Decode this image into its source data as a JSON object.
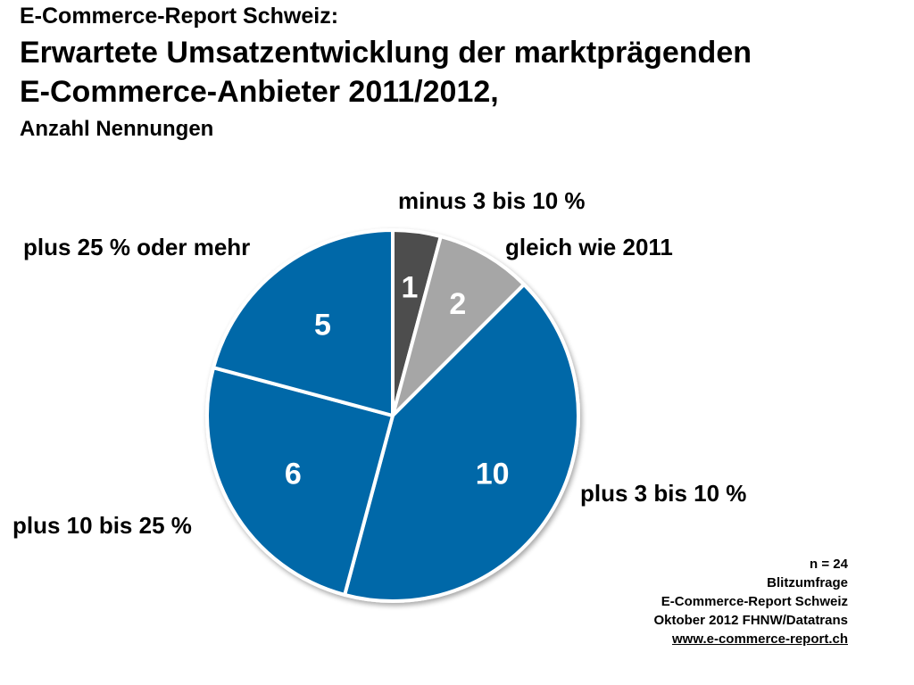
{
  "header": {
    "kicker": "E-Commerce-Report Schweiz:",
    "title_line1": "Erwartete Umsatzentwicklung der marktprägenden",
    "title_line2": "E-Commerce-Anbieter 2011/2012,",
    "subtitle": "Anzahl Nennungen"
  },
  "chart_data": {
    "type": "pie",
    "title": "Erwartete Umsatzentwicklung der marktprägenden E-Commerce-Anbieter 2011/2012,",
    "subtitle": "Anzahl Nennungen",
    "start": "12 o'clock",
    "direction": "clockwise",
    "slices": [
      {
        "label": "minus 3 bis 10 %",
        "value": 1,
        "color": "#4d4d4d"
      },
      {
        "label": "gleich wie 2011",
        "value": 2,
        "color": "#a6a6a6"
      },
      {
        "label": "plus 3 bis 10 %",
        "value": 10,
        "color": "#0068a8"
      },
      {
        "label": "plus 10 bis 25 %",
        "value": 6,
        "color": "#0068a8"
      },
      {
        "label": "plus 25 % oder mehr",
        "value": 5,
        "color": "#0068a8"
      }
    ],
    "value_label_color": "#ffffff"
  },
  "footer": {
    "n": "n = 24",
    "line1": "Blitzumfrage",
    "line2": "E-Commerce-Report Schweiz",
    "line3": "Oktober 2012 FHNW/Datatrans",
    "url": "www.e-commerce-report.ch"
  }
}
